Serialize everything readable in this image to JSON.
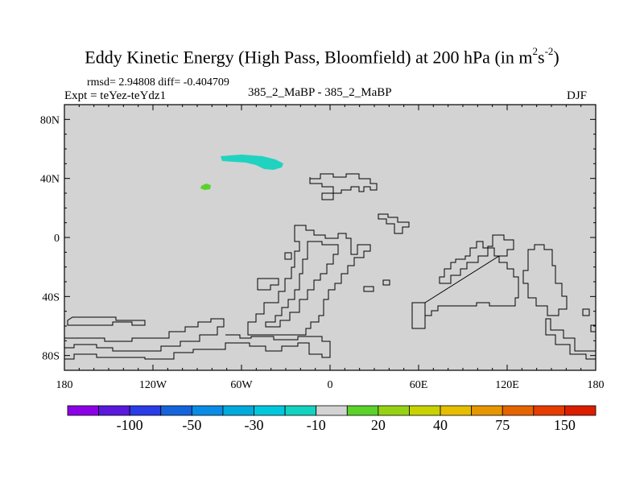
{
  "header": {
    "title_main": "Eddy Kinetic Energy (High Pass, Bloomfield) at 200 hPa (in m",
    "title_sup1": "2",
    "title_mid": "s",
    "title_sup2": "-2",
    "title_end": ")",
    "rmsd_line": "rmsd= 2.94808 diff= -0.404709",
    "expt_line": "Expt = teYez-teYdz1",
    "case_line": "385_2_MaBP - 385_2_MaBP",
    "season": "DJF"
  },
  "colors": {
    "land_fill": "#d3d3d3",
    "outline": "#000000",
    "teal_patch": "#20d3c0",
    "green_patch": "#5ad22a"
  },
  "chart_data": {
    "type": "heatmap",
    "projection": "cylindrical-equidistant",
    "xlim": [
      -180,
      180
    ],
    "ylim": [
      -90,
      90
    ],
    "x_ticks": [
      {
        "value": -180,
        "label": "180"
      },
      {
        "value": -120,
        "label": "120W"
      },
      {
        "value": -60,
        "label": "60W"
      },
      {
        "value": 0,
        "label": "0"
      },
      {
        "value": 60,
        "label": "60E"
      },
      {
        "value": 120,
        "label": "120E"
      },
      {
        "value": 180,
        "label": "180"
      }
    ],
    "y_ticks": [
      {
        "value": 80,
        "label": "80N"
      },
      {
        "value": 40,
        "label": "40N"
      },
      {
        "value": 0,
        "label": "0"
      },
      {
        "value": -40,
        "label": "40S"
      },
      {
        "value": -80,
        "label": "80S"
      }
    ],
    "background_value": "-10 to 10 (near zero)",
    "anomalies": [
      {
        "name": "north-pacific-negative",
        "range": "-30 to -10",
        "lon_range": [
          -75,
          -30
        ],
        "lat_range": [
          50,
          55
        ]
      },
      {
        "name": "subtropical-positive",
        "range": "10 to 20",
        "lon_range": [
          -88,
          -82
        ],
        "lat_range": [
          34,
          37
        ]
      }
    ],
    "colorbar": {
      "colors": [
        "#8c00e6",
        "#5a18dc",
        "#2a3ce6",
        "#1464dc",
        "#0a8ce6",
        "#00aadc",
        "#00c8dc",
        "#14d2c0",
        "#d3d3d3",
        "#5ad22a",
        "#96d214",
        "#c8d200",
        "#e6be00",
        "#e69600",
        "#e66400",
        "#e63c00",
        "#dc1e00"
      ],
      "labels": [
        {
          "boundary": 2,
          "text": "-100"
        },
        {
          "boundary": 4,
          "text": "-50"
        },
        {
          "boundary": 6,
          "text": "-30"
        },
        {
          "boundary": 8,
          "text": "-10"
        },
        {
          "boundary": 10,
          "text": "20"
        },
        {
          "boundary": 12,
          "text": "40"
        },
        {
          "boundary": 14,
          "text": "75"
        },
        {
          "boundary": 16,
          "text": "150"
        }
      ]
    }
  }
}
